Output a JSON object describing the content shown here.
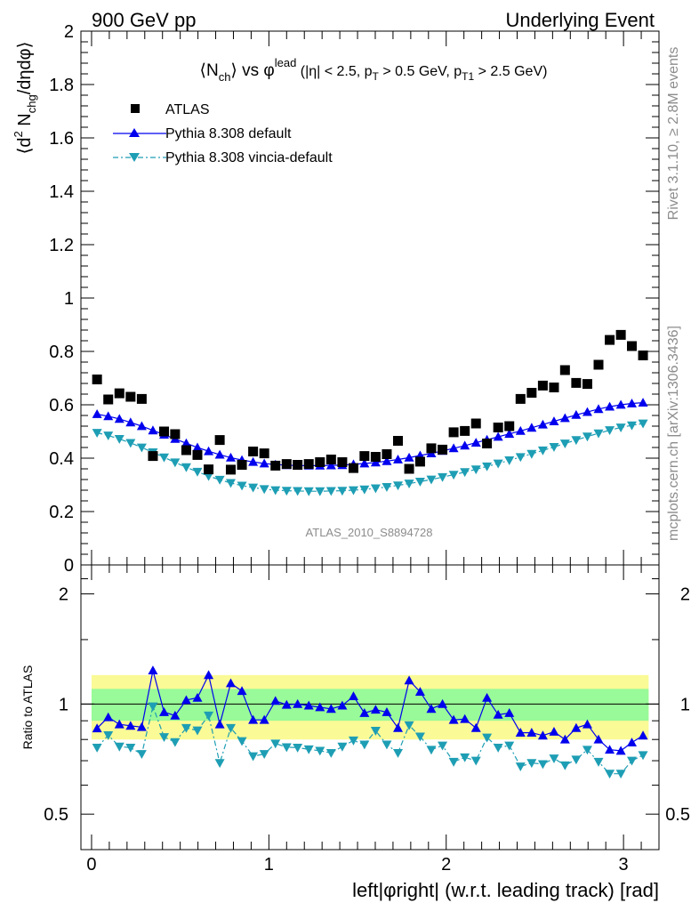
{
  "header": {
    "left": "900 GeV pp",
    "right": "Underlying Event"
  },
  "side": {
    "top": "Rivet 3.1.10, ≥ 2.8M events",
    "bottom": "mcplots.cern.ch [arXiv:1306.3436]"
  },
  "colors": {
    "data": "#000000",
    "pythia": "#0000ee",
    "vincia": "#1e9eb4",
    "band_inner": "#98fa98",
    "band_outer": "#fafa96"
  },
  "chart_data": [
    {
      "type": "scatter",
      "title_parts": {
        "nch": "⟨N",
        "nch_sub": "ch",
        "vs": "⟩ vs φ",
        "lead_sup": "lead",
        "cuts_a": " (|η| < 2.5, p",
        "pt_sub": "T",
        "cuts_b": " > 0.5 GeV, p",
        "pt1_sub": "T1",
        "cuts_c": " > 2.5 GeV)"
      },
      "ylabel_parts": {
        "a": "⟨d",
        "sup": "2",
        "b": " N",
        "sub": "chg",
        "c": "/dηdφ⟩"
      },
      "watermark": "ATLAS_2010_S8894728",
      "xlim": [
        -0.06,
        3.2
      ],
      "ylim": [
        0,
        2
      ],
      "yticks": [
        {
          "v": 0,
          "label": "0"
        },
        {
          "v": 0.2,
          "label": "0.2"
        },
        {
          "v": 0.4,
          "label": "0.4"
        },
        {
          "v": 0.6,
          "label": "0.6"
        },
        {
          "v": 0.8,
          "label": "0.8"
        },
        {
          "v": 1,
          "label": "1"
        },
        {
          "v": 1.2,
          "label": "1.2"
        },
        {
          "v": 1.4,
          "label": "1.4"
        },
        {
          "v": 1.6,
          "label": "1.6"
        },
        {
          "v": 1.8,
          "label": "1.8"
        },
        {
          "v": 2,
          "label": "2"
        }
      ],
      "legend": [
        {
          "name": "ATLAS",
          "marker": "square"
        },
        {
          "name": "Pythia 8.308 default",
          "marker": "triangle-up"
        },
        {
          "name": "Pythia 8.308 vincia-default",
          "marker": "triangle-down"
        }
      ],
      "x": [
        0.031,
        0.094,
        0.157,
        0.22,
        0.283,
        0.346,
        0.409,
        0.471,
        0.534,
        0.597,
        0.66,
        0.723,
        0.785,
        0.848,
        0.911,
        0.974,
        1.037,
        1.1,
        1.162,
        1.225,
        1.288,
        1.351,
        1.414,
        1.477,
        1.539,
        1.602,
        1.665,
        1.728,
        1.791,
        1.853,
        1.916,
        1.979,
        2.042,
        2.105,
        2.168,
        2.23,
        2.293,
        2.356,
        2.419,
        2.482,
        2.545,
        2.608,
        2.67,
        2.733,
        2.796,
        2.859,
        2.922,
        2.985,
        3.047,
        3.11
      ],
      "series": [
        {
          "name": "ATLAS",
          "values": [
            0.695,
            0.62,
            0.643,
            0.63,
            0.622,
            0.408,
            0.5,
            0.49,
            0.43,
            0.412,
            0.358,
            0.468,
            0.357,
            0.375,
            0.425,
            0.418,
            0.372,
            0.378,
            0.375,
            0.378,
            0.385,
            0.395,
            0.385,
            0.363,
            0.408,
            0.405,
            0.415,
            0.465,
            0.36,
            0.387,
            0.437,
            0.432,
            0.497,
            0.502,
            0.53,
            0.455,
            0.515,
            0.52,
            0.622,
            0.645,
            0.672,
            0.665,
            0.73,
            0.682,
            0.678,
            0.75,
            0.843,
            0.862,
            0.82,
            0.785
          ]
        },
        {
          "name": "Pythia 8.308 default",
          "values": [
            0.565,
            0.557,
            0.547,
            0.534,
            0.52,
            0.504,
            0.488,
            0.472,
            0.456,
            0.44,
            0.426,
            0.413,
            0.402,
            0.393,
            0.386,
            0.38,
            0.376,
            0.374,
            0.372,
            0.372,
            0.372,
            0.373,
            0.374,
            0.377,
            0.38,
            0.384,
            0.389,
            0.395,
            0.402,
            0.41,
            0.418,
            0.427,
            0.437,
            0.447,
            0.458,
            0.469,
            0.48,
            0.491,
            0.502,
            0.514,
            0.526,
            0.538,
            0.55,
            0.562,
            0.573,
            0.584,
            0.593,
            0.6,
            0.605,
            0.608
          ]
        },
        {
          "name": "Pythia 8.308 vincia-default",
          "values": [
            0.495,
            0.485,
            0.472,
            0.457,
            0.44,
            0.422,
            0.403,
            0.384,
            0.366,
            0.349,
            0.333,
            0.319,
            0.307,
            0.297,
            0.29,
            0.284,
            0.28,
            0.278,
            0.277,
            0.276,
            0.276,
            0.277,
            0.278,
            0.28,
            0.283,
            0.287,
            0.292,
            0.298,
            0.305,
            0.312,
            0.32,
            0.329,
            0.338,
            0.348,
            0.358,
            0.369,
            0.38,
            0.392,
            0.404,
            0.416,
            0.429,
            0.442,
            0.455,
            0.468,
            0.481,
            0.493,
            0.505,
            0.515,
            0.523,
            0.53
          ]
        }
      ]
    },
    {
      "type": "scatter",
      "ylabel": "Ratio to ATLAS",
      "xlabel": "left|φright| (w.r.t. leading track) [rad]",
      "xlim": [
        -0.06,
        3.2
      ],
      "ylim": [
        0.4,
        2.4
      ],
      "log_y": true,
      "yticks": [
        {
          "v": 0.5,
          "label": "0.5"
        },
        {
          "v": 1,
          "label": "1"
        },
        {
          "v": 2,
          "label": "2"
        }
      ],
      "xticks": [
        {
          "v": 0,
          "label": "0"
        },
        {
          "v": 1,
          "label": "1"
        },
        {
          "v": 2,
          "label": "2"
        },
        {
          "v": 3,
          "label": "3"
        }
      ],
      "reference": 1,
      "band_inner": [
        0.9,
        1.1
      ],
      "band_outer": [
        0.8,
        1.2
      ],
      "series": [
        {
          "name": "Pythia 8.308 default",
          "values": [
            0.858,
            0.92,
            0.88,
            0.872,
            0.865,
            1.235,
            0.95,
            0.93,
            1.025,
            1.04,
            1.2,
            0.88,
            1.14,
            1.085,
            0.905,
            0.905,
            1.02,
            0.995,
            1.0,
            0.99,
            0.98,
            0.97,
            0.99,
            1.05,
            0.945,
            0.965,
            0.95,
            0.86,
            1.16,
            1.08,
            0.97,
            1.0,
            0.905,
            0.91,
            0.86,
            1.04,
            0.935,
            0.945,
            0.835,
            0.835,
            0.82,
            0.84,
            0.8,
            0.86,
            0.88,
            0.8,
            0.75,
            0.745,
            0.785,
            0.82
          ]
        },
        {
          "name": "Pythia 8.308 vincia-default",
          "values": [
            0.76,
            0.822,
            0.765,
            0.76,
            0.73,
            0.985,
            0.812,
            0.787,
            0.86,
            0.847,
            0.93,
            0.69,
            0.86,
            0.792,
            0.72,
            0.73,
            0.78,
            0.762,
            0.76,
            0.752,
            0.745,
            0.735,
            0.765,
            0.795,
            0.775,
            0.845,
            0.775,
            0.735,
            0.875,
            0.815,
            0.75,
            0.77,
            0.695,
            0.715,
            0.7,
            0.81,
            0.76,
            0.77,
            0.675,
            0.69,
            0.685,
            0.71,
            0.68,
            0.705,
            0.75,
            0.695,
            0.645,
            0.645,
            0.7,
            0.725
          ]
        }
      ]
    }
  ]
}
